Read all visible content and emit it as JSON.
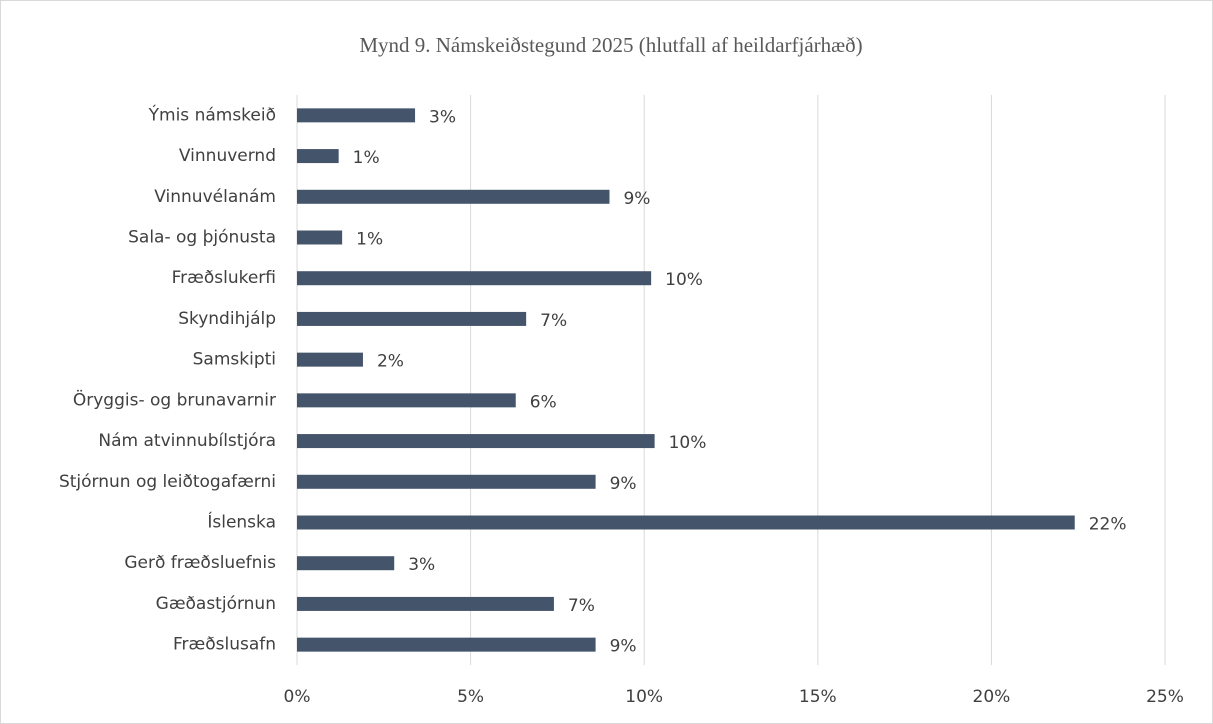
{
  "chart_data": {
    "type": "bar",
    "orientation": "horizontal",
    "title": "Mynd 9. Námskeiðstegund 2025 (hlutfall af heildarfjárhæð)",
    "categories": [
      "Ýmis námskeið",
      "Vinnuvernd",
      "Vinnuvélanám",
      "Sala- og þjónusta",
      "Fræðslukerfi",
      "Skyndihjálp",
      "Samskipti",
      "Öryggis- og brunavarnir",
      "Nám atvinnubílstjóra",
      "Stjórnun og leiðtogafærni",
      "Íslenska",
      "Gerð fræðsluefnis",
      "Gæðastjórnun",
      "Fræðslusafn"
    ],
    "values": [
      3.4,
      1.2,
      9.0,
      1.3,
      10.2,
      6.6,
      1.9,
      6.3,
      10.3,
      8.6,
      22.4,
      2.8,
      7.4,
      8.6
    ],
    "value_labels": [
      "3%",
      "1%",
      "9%",
      "1%",
      "10%",
      "7%",
      "2%",
      "6%",
      "10%",
      "9%",
      "22%",
      "3%",
      "7%",
      "9%"
    ],
    "color": "#44546a",
    "xlim": [
      0,
      25
    ],
    "xticks": [
      {
        "value": 0,
        "label": "0%"
      },
      {
        "value": 5,
        "label": "5%"
      },
      {
        "value": 10,
        "label": "10%"
      },
      {
        "value": 15,
        "label": "15%"
      },
      {
        "value": 20,
        "label": "20%"
      },
      {
        "value": 25,
        "label": "25%"
      }
    ],
    "grid": true
  }
}
